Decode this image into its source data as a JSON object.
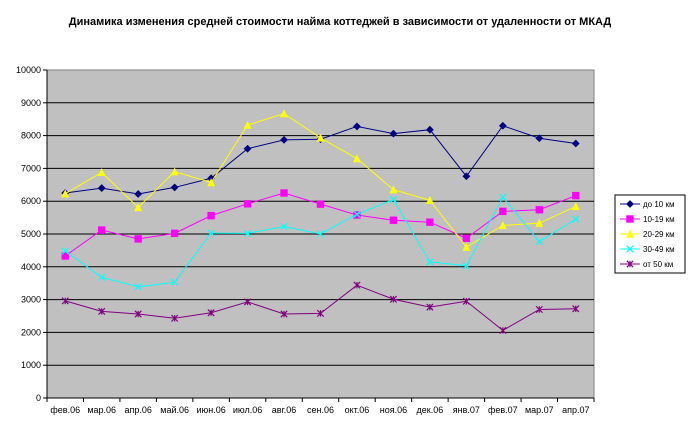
{
  "chart_data": {
    "type": "line",
    "title": "Динамика изменения средней стоимости найма коттеджей в зависимости от удаленности от МКАД",
    "categories": [
      "фев.06",
      "мар.06",
      "апр.06",
      "май.06",
      "июн.06",
      "июл.06",
      "авг.06",
      "сен.06",
      "окт.06",
      "ноя.06",
      "дек.06",
      "янв.07",
      "фев.07",
      "мар.07",
      "апр.07"
    ],
    "ylim": [
      0,
      10000
    ],
    "yticks": [
      0,
      1000,
      2000,
      3000,
      4000,
      5000,
      6000,
      7000,
      8000,
      9000,
      10000
    ],
    "grid": true,
    "plot_background": "#c0c0c0",
    "legend_position": "right",
    "series": [
      {
        "name": "до 10 км",
        "color": "#000080",
        "marker": "diamond",
        "values": [
          6250,
          6400,
          6220,
          6420,
          6700,
          7600,
          7870,
          7890,
          8280,
          8060,
          8180,
          6760,
          8300,
          7920,
          7760
        ]
      },
      {
        "name": "10-19 км",
        "color": "#ff00ff",
        "marker": "square",
        "values": [
          4330,
          5120,
          4850,
          5020,
          5560,
          5920,
          6250,
          5910,
          5580,
          5420,
          5360,
          4870,
          5690,
          5740,
          6170
        ]
      },
      {
        "name": "20-29 км",
        "color": "#ffff00",
        "marker": "triangle",
        "values": [
          6230,
          6880,
          5810,
          6900,
          6570,
          8320,
          8670,
          7930,
          7300,
          6350,
          6030,
          4600,
          5260,
          5330,
          5840
        ]
      },
      {
        "name": "30-49 км",
        "color": "#00ffff",
        "marker": "x",
        "values": [
          4480,
          3680,
          3390,
          3530,
          5030,
          5020,
          5230,
          5000,
          5600,
          6050,
          4150,
          4030,
          6120,
          4770,
          5450
        ]
      },
      {
        "name": "от 50 км",
        "color": "#800080",
        "marker": "star",
        "values": [
          2960,
          2640,
          2560,
          2430,
          2600,
          2930,
          2560,
          2580,
          3440,
          3010,
          2770,
          2950,
          2060,
          2700,
          2720
        ]
      }
    ]
  }
}
